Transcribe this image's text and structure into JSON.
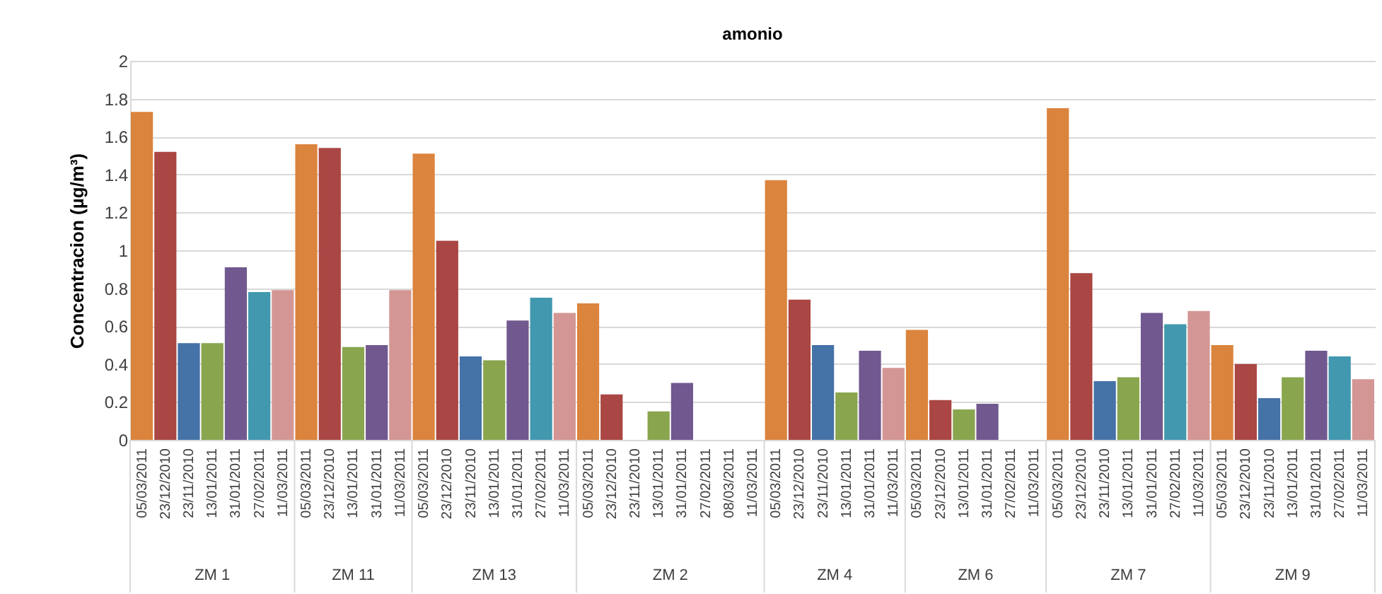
{
  "chart_data": {
    "type": "bar",
    "title": "amonio",
    "ylabel": "Concentracion (µg/m³)",
    "categories": [
      "05/03/2011",
      "23/12/2010",
      "23/11/2010",
      "13/01/2011",
      "31/01/2011",
      "27/02/2011",
      "11/03/2011",
      "05/03/2011",
      "23/12/2010",
      "13/01/2011",
      "31/01/2011",
      "11/03/2011",
      "05/03/2011",
      "23/12/2010",
      "23/11/2010",
      "13/01/2011",
      "31/01/2011",
      "27/02/2011",
      "11/03/2011",
      "05/03/2011",
      "23/12/2010",
      "23/11/2010",
      "13/01/2011",
      "31/01/2011",
      "27/02/2011",
      "08/03/2011",
      "11/03/2011",
      "05/03/2011",
      "23/12/2010",
      "23/11/2010",
      "13/01/2011",
      "31/01/2011",
      "11/03/2011",
      "05/03/2011",
      "23/12/2010",
      "13/01/2011",
      "31/01/2011",
      "27/02/2011",
      "11/03/2011",
      "05/03/2011",
      "23/12/2010",
      "23/11/2010",
      "13/01/2011",
      "31/01/2011",
      "27/02/2011",
      "11/03/2011",
      "05/03/2011",
      "23/12/2010",
      "23/11/2010",
      "13/01/2011",
      "31/01/2011",
      "27/02/2011",
      "11/03/2011"
    ],
    "values": [
      1.73,
      1.52,
      0.51,
      0.51,
      0.91,
      0.78,
      0.79,
      1.56,
      1.54,
      0.49,
      0.5,
      0.79,
      1.51,
      1.05,
      0.44,
      0.42,
      0.63,
      0.75,
      0.67,
      0.72,
      0.24,
      null,
      0.15,
      0.3,
      null,
      null,
      null,
      1.37,
      0.74,
      0.5,
      0.25,
      0.47,
      0.38,
      0.58,
      0.21,
      0.16,
      0.19,
      null,
      null,
      1.75,
      0.88,
      0.31,
      0.33,
      0.67,
      0.61,
      0.68,
      0.5,
      0.4,
      0.22,
      0.33,
      0.47,
      0.44,
      0.32
    ],
    "colors": [
      "#db843d",
      "#aa4643",
      "#4572a7",
      "#89a54e",
      "#71588f",
      "#4198af",
      "#d49694",
      "#db843d",
      "#aa4643",
      "#89a54e",
      "#71588f",
      "#d49694",
      "#db843d",
      "#aa4643",
      "#4572a7",
      "#89a54e",
      "#71588f",
      "#4198af",
      "#d49694",
      "#db843d",
      "#aa4643",
      "#4572a7",
      "#89a54e",
      "#71588f",
      "#4198af",
      "#93a9cf",
      "#d49694",
      "#db843d",
      "#aa4643",
      "#4572a7",
      "#89a54e",
      "#71588f",
      "#d49694",
      "#db843d",
      "#aa4643",
      "#89a54e",
      "#71588f",
      "#4198af",
      "#d49694",
      "#db843d",
      "#aa4643",
      "#4572a7",
      "#89a54e",
      "#71588f",
      "#4198af",
      "#d49694",
      "#db843d",
      "#aa4643",
      "#4572a7",
      "#89a54e",
      "#71588f",
      "#4198af",
      "#d49694"
    ],
    "annotations": [
      "ZM 1",
      "ZM 11",
      "ZM 13",
      "ZM 2",
      "ZM 4",
      "ZM 6",
      "ZM 7",
      "ZM 9"
    ],
    "ylim": [
      0,
      2
    ],
    "yticks": [
      0,
      0.2,
      0.4,
      0.6,
      0.8,
      1,
      1.2,
      1.4,
      1.6,
      1.8,
      2
    ],
    "grid": "y"
  }
}
